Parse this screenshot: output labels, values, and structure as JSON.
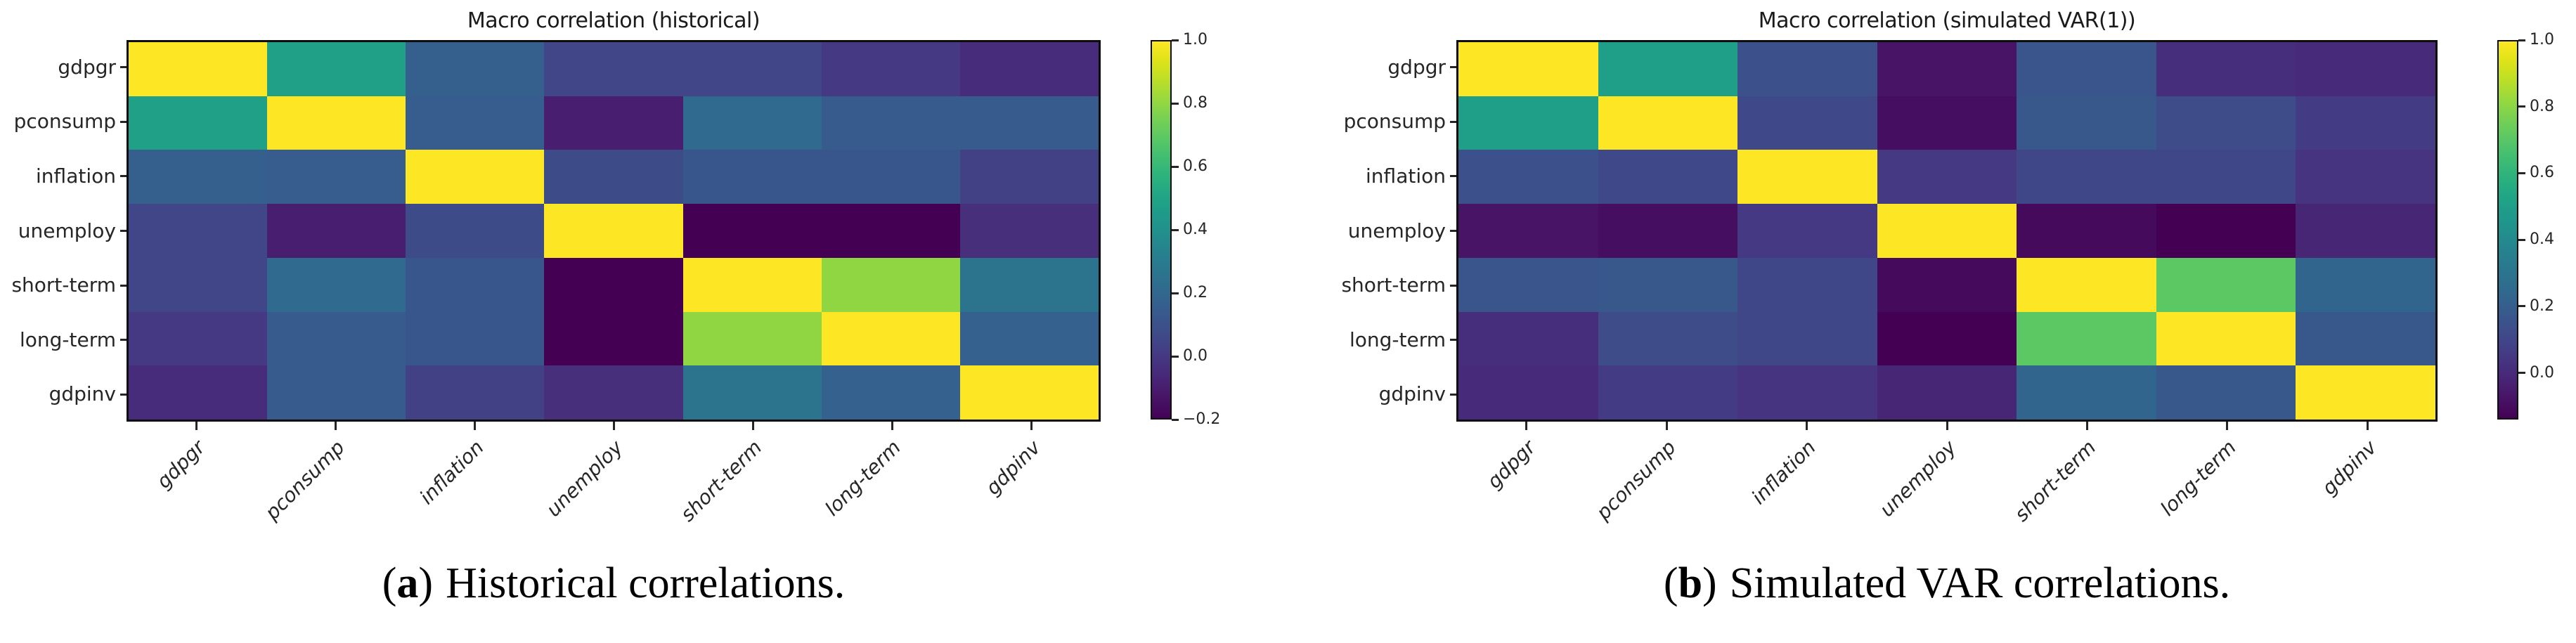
{
  "chart_data": [
    {
      "type": "heatmap",
      "title": "Macro correlation (historical)",
      "colormap": "viridis",
      "x_tick_labels": [
        "gdpgr",
        "pconsump",
        "inflation",
        "unemploy",
        "short-term",
        "long-term",
        "gdpinv"
      ],
      "y_tick_labels": [
        "gdpgr",
        "pconsump",
        "inflation",
        "unemploy",
        "short-term",
        "long-term",
        "gdpinv"
      ],
      "matrix": [
        [
          1.0,
          0.48,
          0.16,
          0.05,
          0.05,
          0.0,
          -0.05
        ],
        [
          0.48,
          1.0,
          0.15,
          -0.1,
          0.21,
          0.14,
          0.14
        ],
        [
          0.16,
          0.15,
          1.0,
          0.07,
          0.12,
          0.12,
          0.03
        ],
        [
          0.05,
          -0.1,
          0.07,
          1.0,
          -0.2,
          -0.2,
          -0.04
        ],
        [
          0.05,
          0.21,
          0.12,
          -0.2,
          1.0,
          0.8,
          0.26
        ],
        [
          0.0,
          0.14,
          0.12,
          -0.2,
          0.8,
          1.0,
          0.17
        ],
        [
          -0.05,
          0.14,
          0.03,
          -0.04,
          0.26,
          0.17,
          1.0
        ]
      ],
      "vmin": -0.2,
      "vmax": 1.0,
      "colorbar_ticks": [
        1.0,
        0.8,
        0.6,
        0.4,
        0.2,
        0.0,
        -0.2
      ],
      "legend_position": "right",
      "grid": false
    },
    {
      "type": "heatmap",
      "title": "Macro correlation (simulated VAR(1))",
      "colormap": "viridis",
      "x_tick_labels": [
        "gdpgr",
        "pconsump",
        "inflation",
        "unemploy",
        "short-term",
        "long-term",
        "gdpinv"
      ],
      "y_tick_labels": [
        "gdpgr",
        "pconsump",
        "inflation",
        "unemploy",
        "short-term",
        "long-term",
        "gdpinv"
      ],
      "matrix": [
        [
          1.0,
          0.5,
          0.14,
          -0.08,
          0.16,
          0.01,
          0.0
        ],
        [
          0.5,
          1.0,
          0.11,
          -0.1,
          0.17,
          0.12,
          0.06
        ],
        [
          0.14,
          0.11,
          1.0,
          0.05,
          0.1,
          0.1,
          0.03
        ],
        [
          -0.08,
          -0.1,
          0.05,
          1.0,
          -0.11,
          -0.14,
          -0.02
        ],
        [
          0.16,
          0.17,
          0.1,
          -0.11,
          1.0,
          0.71,
          0.23
        ],
        [
          0.01,
          0.12,
          0.1,
          -0.14,
          0.71,
          1.0,
          0.17
        ],
        [
          0.0,
          0.06,
          0.03,
          -0.02,
          0.23,
          0.17,
          1.0
        ]
      ],
      "vmin": -0.14,
      "vmax": 1.0,
      "colorbar_ticks": [
        1.0,
        0.8,
        0.6,
        0.4,
        0.2,
        0.0
      ],
      "legend_position": "right",
      "grid": false
    }
  ],
  "captions": [
    {
      "open": "(",
      "label": "a",
      "close": ")",
      "text": "Historical correlations."
    },
    {
      "open": "(",
      "label": "b",
      "close": ")",
      "text": "Simulated VAR correlations."
    }
  ]
}
